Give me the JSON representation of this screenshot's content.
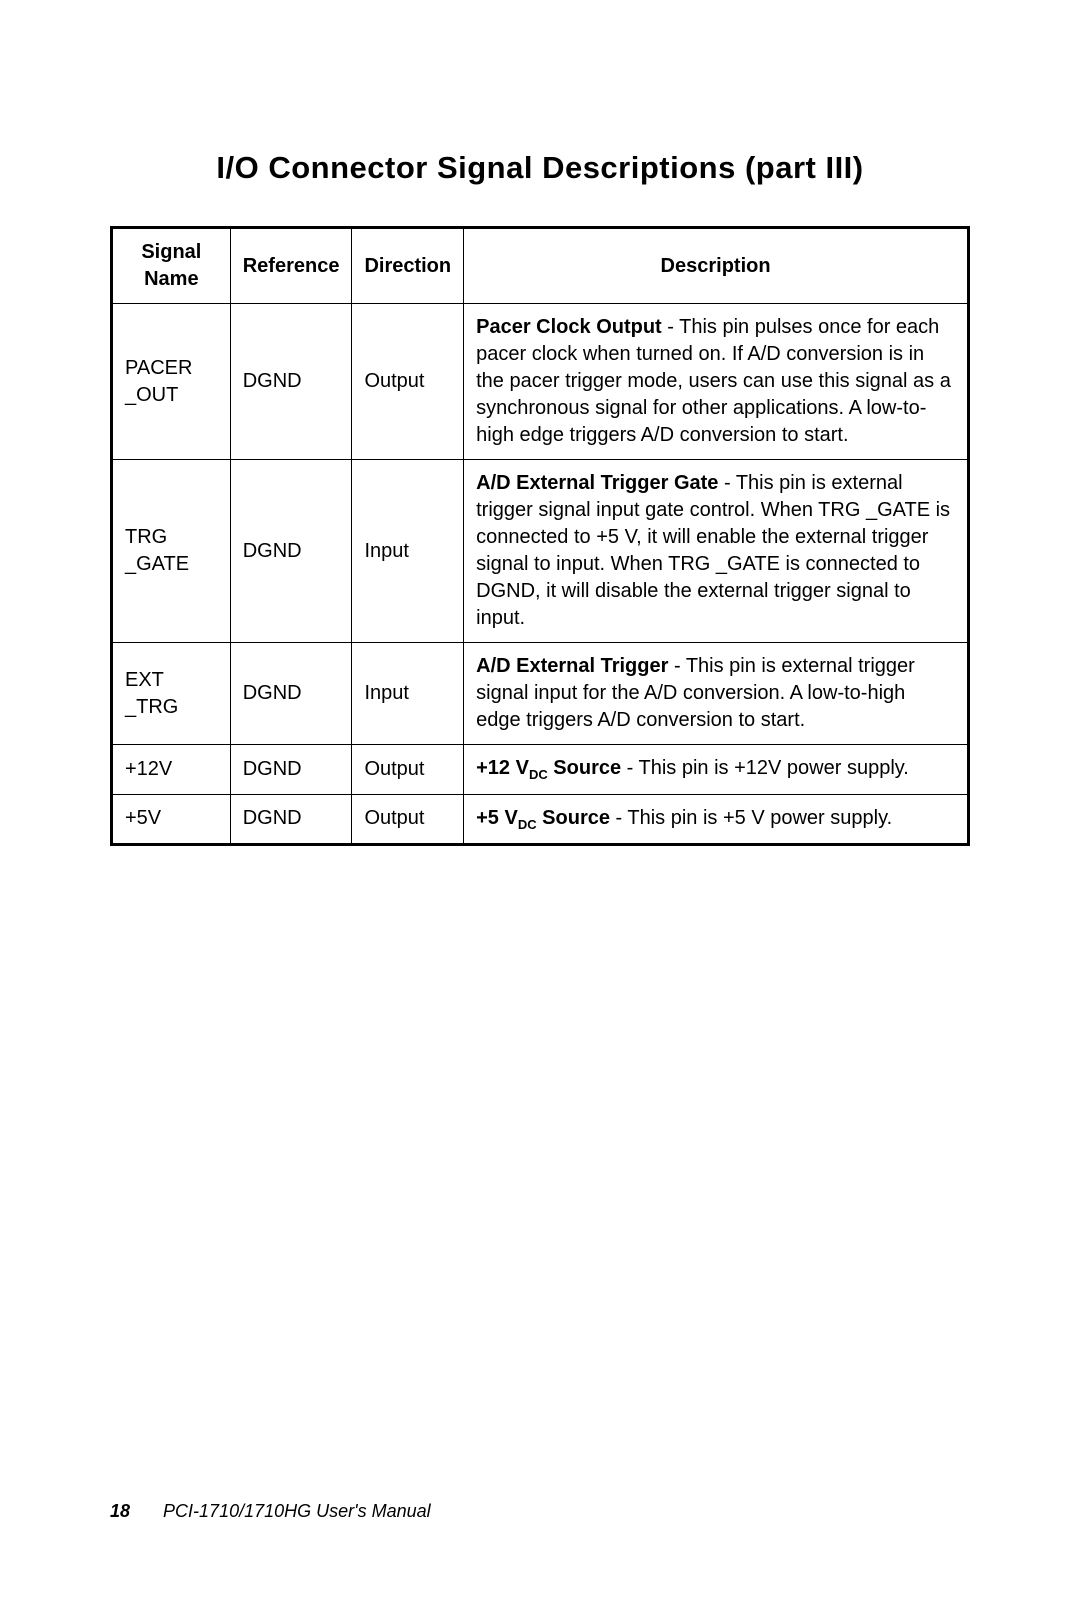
{
  "title": "I/O Connector Signal Descriptions (part III)",
  "columns": [
    "Signal Name",
    "Reference",
    "Direction",
    "Description"
  ],
  "rows": [
    {
      "signal": "PACER _OUT",
      "reference": "DGND",
      "direction": "Output",
      "desc_bold": "Pacer Clock Output",
      "desc_rest": " - This pin pulses once for each pacer clock when turned on.  If A/D conversion is in the pacer trigger mode, users can use this signal as a synchronous signal for other applications.  A low-to-high edge triggers A/D conversion to start."
    },
    {
      "signal": "TRG _GATE",
      "reference": "DGND",
      "direction": "Input",
      "desc_bold": "A/D External Trigger Gate",
      "desc_rest": " - This pin is external trigger signal input gate control.  When TRG _GATE is connected to +5 V, it will enable the external trigger signal to input.  When TRG _GATE is connected to DGND, it will disable the external trigger signal to input."
    },
    {
      "signal": "EXT _TRG",
      "reference": "DGND",
      "direction": "Input",
      "desc_bold": "A/D External Trigger",
      "desc_rest": " - This pin is external trigger signal input for the A/D conversion.  A low-to-high edge triggers A/D conversion to start."
    },
    {
      "signal": "+12V",
      "reference": "DGND",
      "direction": "Output",
      "desc_bold_prefix": "+12 V",
      "desc_bold_sub": "DC",
      "desc_bold_suffix": " Source",
      "desc_rest": " - This pin is +12V power supply."
    },
    {
      "signal": "+5V",
      "reference": "DGND",
      "direction": "Output",
      "desc_bold_prefix": "+5 V",
      "desc_bold_sub": "DC",
      "desc_bold_suffix": " Source",
      "desc_rest": " - This pin is +5 V power supply."
    }
  ],
  "footer": {
    "page_number": "18",
    "doc_title": "PCI-1710/1710HG    User's Manual"
  }
}
